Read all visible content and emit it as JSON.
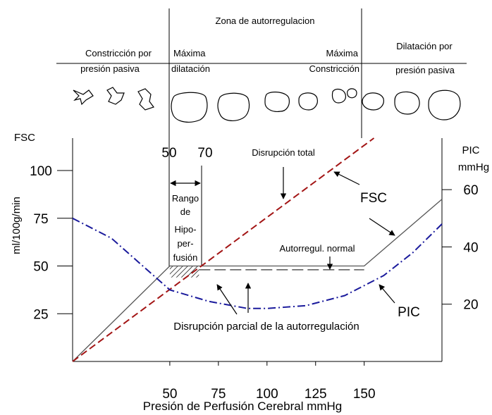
{
  "header": {
    "zone_title": "Zona de  autorregulacion",
    "left_line1": "Constricción por",
    "left_line2": "presión pasiva",
    "max_dil_line1": "Máxima",
    "max_dil_line2": "dilatación",
    "max_con_line1": "Máxima",
    "max_con_line2": "Constricción",
    "right_line1": "Dilatación por",
    "right_line2": "presión pasiva"
  },
  "axes": {
    "left_title": "FSC",
    "left_unit": "ml/100g/min",
    "right_title": "PIC",
    "right_unit": "mmHg",
    "x_title": "Presión de Perfusión Cerebral  mmHg",
    "top_ticks": [
      "50",
      "70"
    ]
  },
  "annotations": {
    "total": "Disrupción total",
    "fsc": "FSC",
    "normal": "Autorregul. normal",
    "pic": "PIC",
    "partial": "Disrupción parcial de la  autorregulación",
    "range1": "Rango",
    "range2": "de",
    "range3": "Hipo-",
    "range4": "per-",
    "range5": "fusión"
  },
  "chart_data": {
    "type": "line",
    "title": "",
    "xlabel": "Presión de Perfusión Cerebral  mmHg",
    "ylabel": "ml/100g/min",
    "y2label": "mmHg",
    "xlim": [
      0,
      190
    ],
    "ylim": [
      0,
      117
    ],
    "y2lim": [
      0,
      78
    ],
    "x_ticks": [
      50,
      75,
      100,
      125,
      150
    ],
    "x_tick_labels": [
      "50",
      "75",
      "100",
      "125",
      "150"
    ],
    "y_ticks": [
      25,
      50,
      75,
      100
    ],
    "y_tick_labels": [
      "25",
      "50",
      "75",
      "100"
    ],
    "y2_ticks": [
      20,
      40,
      60
    ],
    "y2_tick_labels": [
      "20",
      "40",
      "60"
    ],
    "series": [
      {
        "name": "Autorregul. normal",
        "axis": "left",
        "style": "solid",
        "color": "#555555",
        "x": [
          0,
          50,
          150,
          190
        ],
        "y": [
          0,
          50,
          50,
          85
        ]
      },
      {
        "name": "Disrupción parcial de la  autorregulación",
        "axis": "left",
        "style": "dashed",
        "color": "#333333",
        "x": [
          65,
          150
        ],
        "y": [
          48,
          48
        ]
      },
      {
        "name": "Disrupción total",
        "axis": "left",
        "style": "dashed",
        "color": "#a31515",
        "x": [
          0,
          155
        ],
        "y": [
          0,
          117
        ]
      },
      {
        "name": "PIC",
        "axis": "right",
        "style": "dashdot",
        "color": "#1a1a9c",
        "x": [
          0,
          20,
          40,
          50,
          70,
          90,
          100,
          120,
          140,
          160,
          175,
          190
        ],
        "y": [
          50,
          43,
          31,
          25,
          21,
          18.5,
          18.5,
          19.5,
          23,
          30,
          38,
          48
        ]
      }
    ],
    "shaded_region": {
      "x": [
        50,
        65
      ],
      "y": [
        44,
        50
      ]
    },
    "grid": false
  },
  "colors": {
    "normal": "#555555",
    "partial": "#333333",
    "total": "#a31515",
    "pic": "#1a1a9c"
  }
}
